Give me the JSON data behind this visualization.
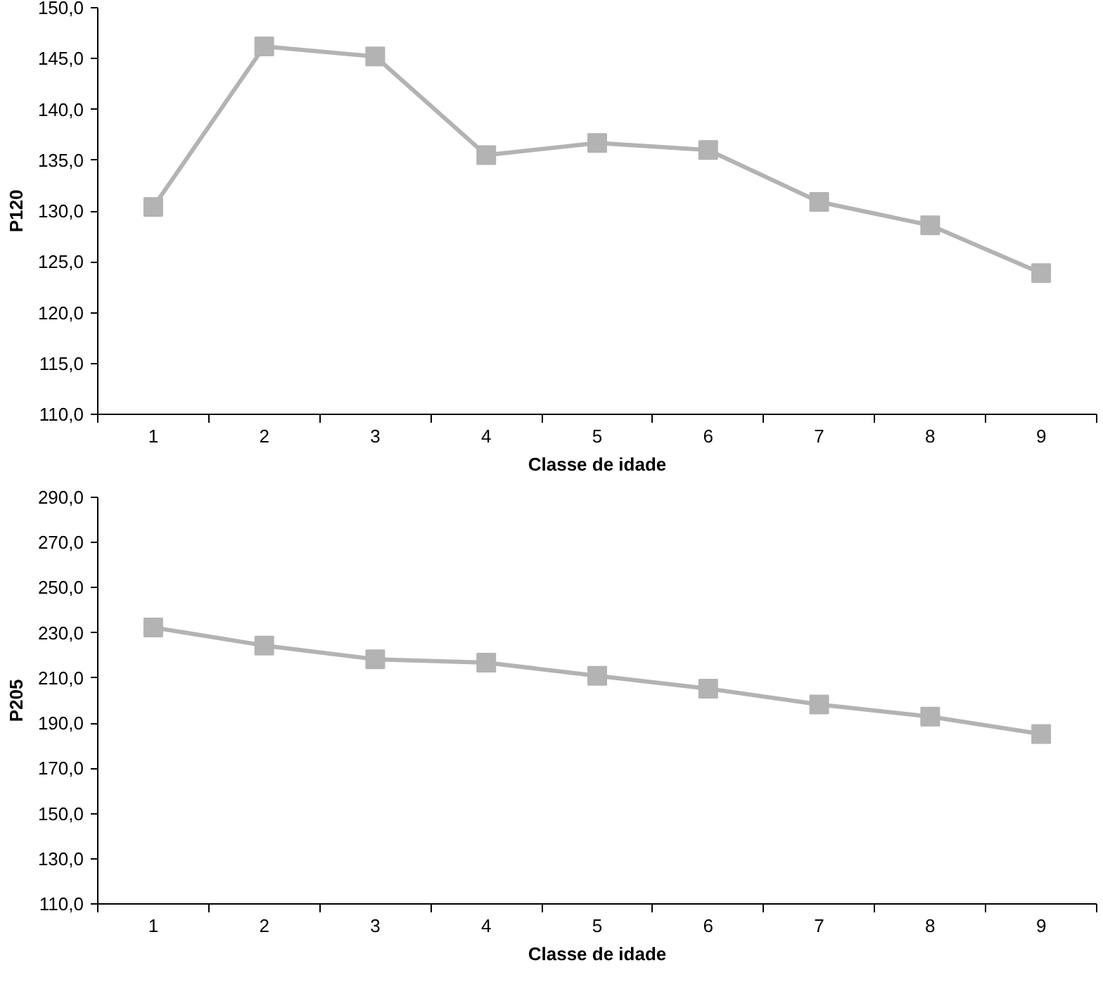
{
  "chart_data": [
    {
      "type": "line",
      "xlabel": "Classe de idade",
      "ylabel": "P120",
      "categories": [
        "1",
        "2",
        "3",
        "4",
        "5",
        "6",
        "7",
        "8",
        "9"
      ],
      "series": [
        {
          "color": "#b3b3b3",
          "values": [
            130.4,
            146.2,
            145.2,
            135.5,
            136.7,
            136.0,
            130.9,
            128.6,
            123.9
          ]
        }
      ],
      "ylim": [
        110,
        150
      ],
      "yticks": [
        {
          "value": 110,
          "label": "110,0"
        },
        {
          "value": 115,
          "label": "115,0"
        },
        {
          "value": 120,
          "label": "120,0"
        },
        {
          "value": 125,
          "label": "125,0"
        },
        {
          "value": 130,
          "label": "130,0"
        },
        {
          "value": 135,
          "label": "135,0"
        },
        {
          "value": 140,
          "label": "140,0"
        },
        {
          "value": 145,
          "label": "145,0"
        },
        {
          "value": 150,
          "label": "150,0"
        }
      ],
      "marker": "square",
      "line_style": "solid"
    },
    {
      "type": "line",
      "xlabel": "Classe de idade",
      "ylabel": "P205",
      "categories": [
        "1",
        "2",
        "3",
        "4",
        "5",
        "6",
        "7",
        "8",
        "9"
      ],
      "series": [
        {
          "color": "#b3b3b3",
          "values": [
            232.4,
            224.4,
            218.3,
            216.8,
            211.0,
            205.3,
            198.3,
            192.9,
            185.2
          ]
        }
      ],
      "ylim": [
        110,
        290
      ],
      "yticks": [
        {
          "value": 110,
          "label": "110,0"
        },
        {
          "value": 130,
          "label": "130,0"
        },
        {
          "value": 150,
          "label": "150,0"
        },
        {
          "value": 170,
          "label": "170,0"
        },
        {
          "value": 190,
          "label": "190,0"
        },
        {
          "value": 210,
          "label": "210,0"
        },
        {
          "value": 230,
          "label": "230,0"
        },
        {
          "value": 250,
          "label": "250,0"
        },
        {
          "value": 270,
          "label": "270,0"
        },
        {
          "value": 290,
          "label": "290,0"
        }
      ],
      "marker": "square",
      "line_style": "solid"
    }
  ]
}
